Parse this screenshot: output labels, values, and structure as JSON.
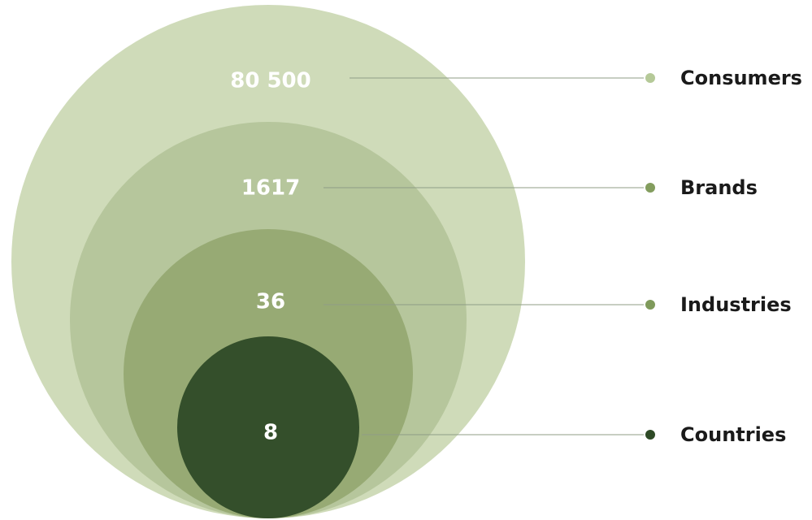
{
  "nodes": [
    {
      "value": "80 500",
      "label": "Consumers",
      "color": "#cfdbb9",
      "dot_color": "#b5c998"
    },
    {
      "value": "1617",
      "label": "Brands",
      "color": "#b6c69c",
      "dot_color": "#839d5e"
    },
    {
      "value": "36",
      "label": "Industries",
      "color": "#97aa74",
      "dot_color": "#7f9a5b"
    },
    {
      "value": "8",
      "label": "Countries",
      "color": "#344f2b",
      "dot_color": "#2e4a26"
    }
  ]
}
